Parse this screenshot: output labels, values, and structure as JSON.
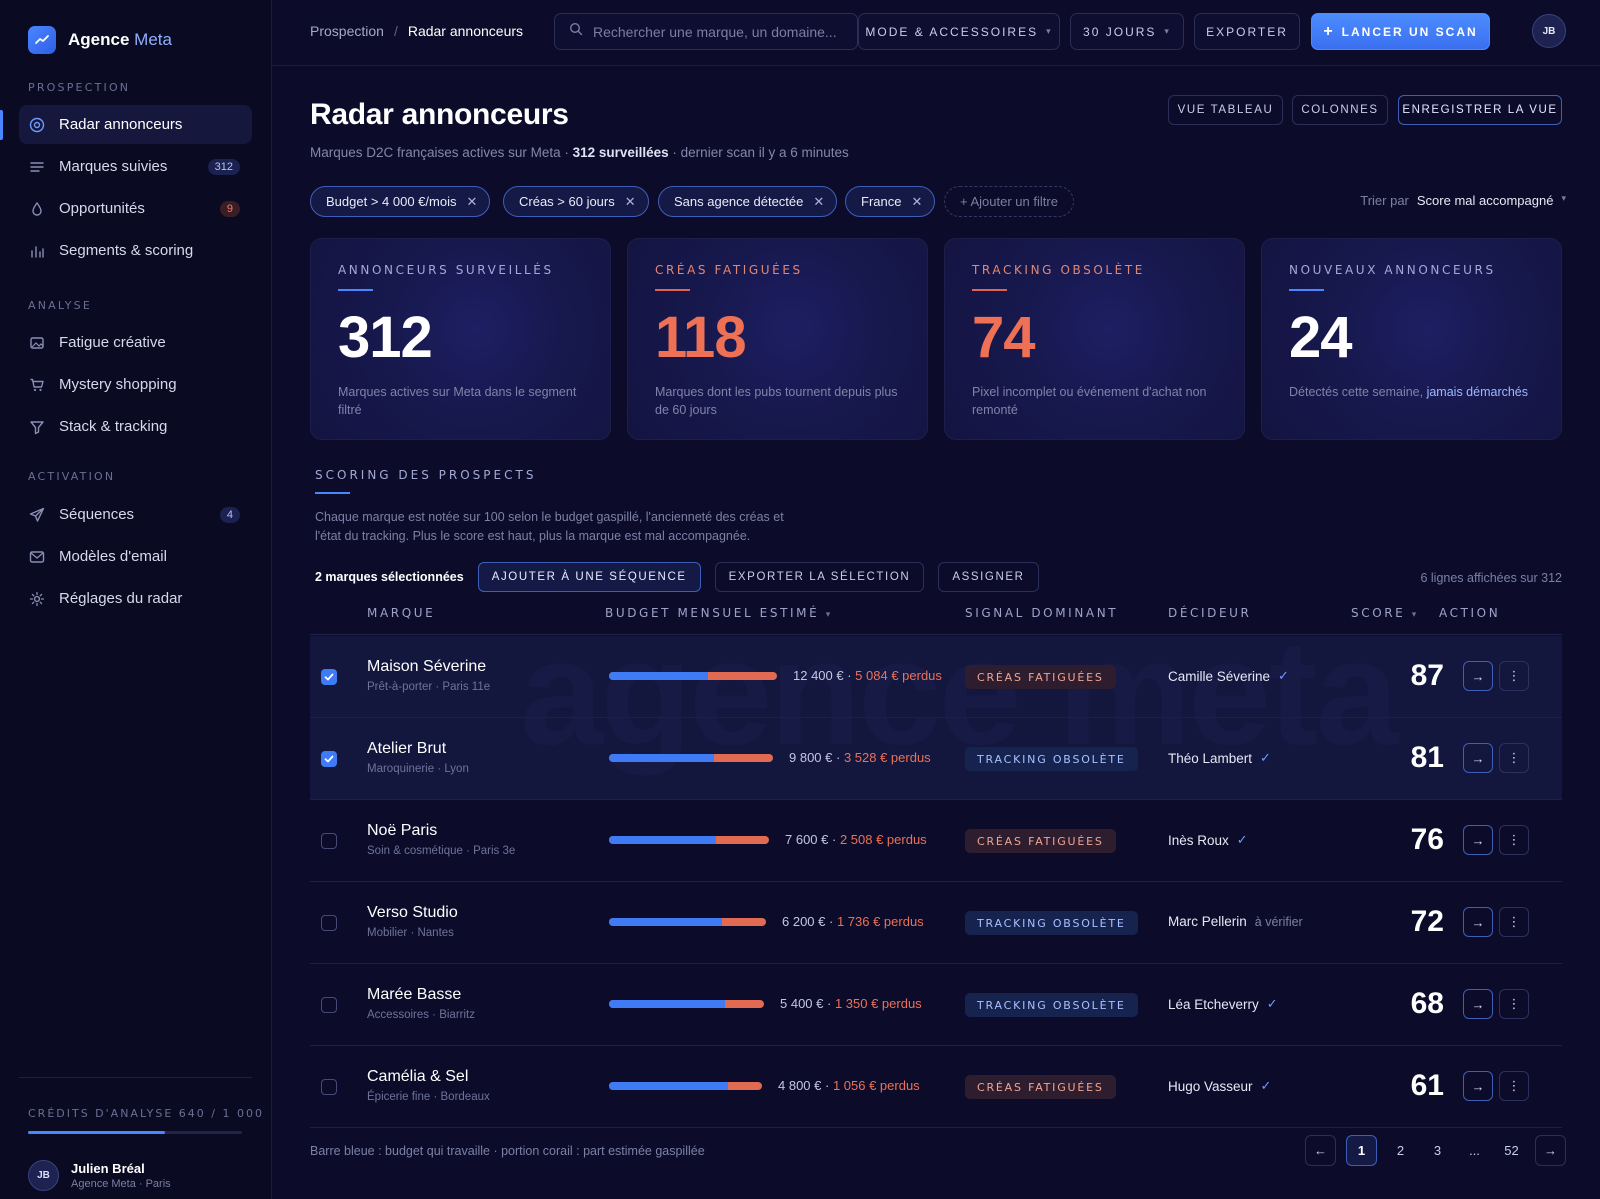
{
  "brand": {
    "name": "Agence",
    "accent": "Meta"
  },
  "sidebar": {
    "sections": [
      {
        "title": "PROSPECTION",
        "items": [
          {
            "label": "Radar annonceurs",
            "icon": "target-icon",
            "badge": "",
            "active": true
          },
          {
            "label": "Marques suivies",
            "icon": "list-icon",
            "badge": "312"
          },
          {
            "label": "Opportunités",
            "icon": "drop-icon",
            "badge": "9"
          },
          {
            "label": "Segments & scoring",
            "icon": "bar-chart-icon",
            "badge": ""
          }
        ]
      },
      {
        "title": "ANALYSE",
        "items": [
          {
            "label": "Fatigue créative",
            "icon": "image-icon",
            "badge": ""
          },
          {
            "label": "Mystery shopping",
            "icon": "cart-icon",
            "badge": ""
          },
          {
            "label": "Stack & tracking",
            "icon": "filter-icon",
            "badge": ""
          }
        ]
      },
      {
        "title": "ACTIVATION",
        "items": [
          {
            "label": "Séquences",
            "icon": "send-icon",
            "badge": "4"
          },
          {
            "label": "Modèles d'email",
            "icon": "mail-icon",
            "badge": ""
          },
          {
            "label": "Réglages du radar",
            "icon": "settings-icon",
            "badge": ""
          }
        ]
      }
    ],
    "credits": {
      "label": "CRÉDITS D'ANALYSE 640 / 1 000",
      "used": 640,
      "total": 1000
    },
    "user": {
      "initials": "JB",
      "name": "Julien Bréal",
      "sub": "Agence Meta · Paris"
    }
  },
  "topbar": {
    "breadcrumb": [
      "Prospection",
      "Radar annonceurs"
    ],
    "search_placeholder": "Rechercher une marque, un domaine...",
    "category": "MODE & ACCESSOIRES",
    "period": "30 JOURS",
    "export_label": "EXPORTER",
    "scan_label": "LANCER UN SCAN",
    "avatar_initials": "JB"
  },
  "page": {
    "title": "Radar annonceurs",
    "subtitle_pre": "Marques D2C françaises actives sur Meta · ",
    "subtitle_bold": "312 surveillées",
    "subtitle_post": " · dernier scan il y a 6 minutes",
    "view_buttons": [
      "VUE TABLEAU",
      "COLONNES",
      "ENREGISTRER LA VUE"
    ],
    "filters": [
      "Budget > 4 000 €/mois",
      "Créas > 60 jours",
      "Sans agence détectée",
      "France"
    ],
    "add_filter": "+ Ajouter un filtre",
    "sort_label": "Trier par",
    "sort_value": "Score mal accompagné"
  },
  "kpis": [
    {
      "label": "ANNONCEURS SURVEILLÉS",
      "value": "312",
      "desc": "Marques actives sur Meta dans le segment filtré",
      "desc_hl": "",
      "warn": false
    },
    {
      "label": "CRÉAS FATIGUÉES",
      "value": "118",
      "desc": "Marques dont les pubs tournent depuis plus de 60 jours",
      "desc_hl": "",
      "warn": true
    },
    {
      "label": "TRACKING OBSOLÈTE",
      "value": "74",
      "desc": "Pixel incomplet ou événement d'achat non remonté",
      "desc_hl": "",
      "warn": true
    },
    {
      "label": "NOUVEAUX ANNONCEURS",
      "value": "24",
      "desc": "Détectés cette semaine, ",
      "desc_hl": "jamais démarchés",
      "warn": false
    }
  ],
  "scoring": {
    "title": "SCORING DES PROSPECTS",
    "desc": "Chaque marque est notée sur 100 selon le budget gaspillé, l'ancienneté des créas et l'état du tracking. Plus le score est haut, plus la marque est mal accompagnée.",
    "selected_count": "2 marques sélectionnées",
    "actions": [
      "AJOUTER À UNE SÉQUENCE",
      "EXPORTER LA SÉLECTION",
      "ASSIGNER"
    ],
    "rows_info": "6 lignes affichées sur 312",
    "watermark": "agence meta"
  },
  "table": {
    "headers": {
      "brand": "MARQUE",
      "budget": "BUDGET MENSUEL ESTIMÉ",
      "signal": "SIGNAL DOMINANT",
      "decider": "DÉCIDEUR",
      "score": "SCORE",
      "action": "ACTION"
    },
    "rows": [
      {
        "checked": true,
        "name": "Maison Séverine",
        "sub": "Prêt-à-porter · Paris 11e",
        "budget": "12 400 €",
        "lost": "5 084 € perdus",
        "budget_value": 12400,
        "lost_value": 5084,
        "signal": "CRÉAS FATIGUÉES",
        "signal_type": "crea",
        "decider": "Camille Séverine",
        "verified": true,
        "status": "",
        "score": "87"
      },
      {
        "checked": true,
        "name": "Atelier Brut",
        "sub": "Maroquinerie · Lyon",
        "budget": "9 800 €",
        "lost": "3 528 € perdus",
        "budget_value": 9800,
        "lost_value": 3528,
        "signal": "TRACKING OBSOLÈTE",
        "signal_type": "track",
        "decider": "Théo Lambert",
        "verified": true,
        "status": "",
        "score": "81"
      },
      {
        "checked": false,
        "name": "Noë Paris",
        "sub": "Soin & cosmétique · Paris 3e",
        "budget": "7 600 €",
        "lost": "2 508 € perdus",
        "budget_value": 7600,
        "lost_value": 2508,
        "signal": "CRÉAS FATIGUÉES",
        "signal_type": "crea",
        "decider": "Inès Roux",
        "verified": true,
        "status": "",
        "score": "76"
      },
      {
        "checked": false,
        "name": "Verso Studio",
        "sub": "Mobilier · Nantes",
        "budget": "6 200 €",
        "lost": "1 736 € perdus",
        "budget_value": 6200,
        "lost_value": 1736,
        "signal": "TRACKING OBSOLÈTE",
        "signal_type": "track",
        "decider": "Marc Pellerin",
        "verified": false,
        "status": "à vérifier",
        "score": "72"
      },
      {
        "checked": false,
        "name": "Marée Basse",
        "sub": "Accessoires · Biarritz",
        "budget": "5 400 €",
        "lost": "1 350 € perdus",
        "budget_value": 5400,
        "lost_value": 1350,
        "signal": "TRACKING OBSOLÈTE",
        "signal_type": "track",
        "decider": "Léa Etcheverry",
        "verified": true,
        "status": "",
        "score": "68"
      },
      {
        "checked": false,
        "name": "Camélia & Sel",
        "sub": "Épicerie fine · Bordeaux",
        "budget": "4 800 €",
        "lost": "1 056 € perdus",
        "budget_value": 4800,
        "lost_value": 1056,
        "signal": "CRÉAS FATIGUÉES",
        "signal_type": "crea",
        "decider": "Hugo Vasseur",
        "verified": true,
        "status": "",
        "score": "61"
      }
    ]
  },
  "footer": {
    "legend": "Barre bleue : budget qui travaille · portion corail : part estimée gaspillée",
    "pages": [
      "1",
      "2",
      "3",
      "...",
      "52"
    ],
    "current_page": "1"
  },
  "colors": {
    "accent": "#4a86ff",
    "waste": "#e0644f",
    "bg": "#0c0c2a"
  }
}
